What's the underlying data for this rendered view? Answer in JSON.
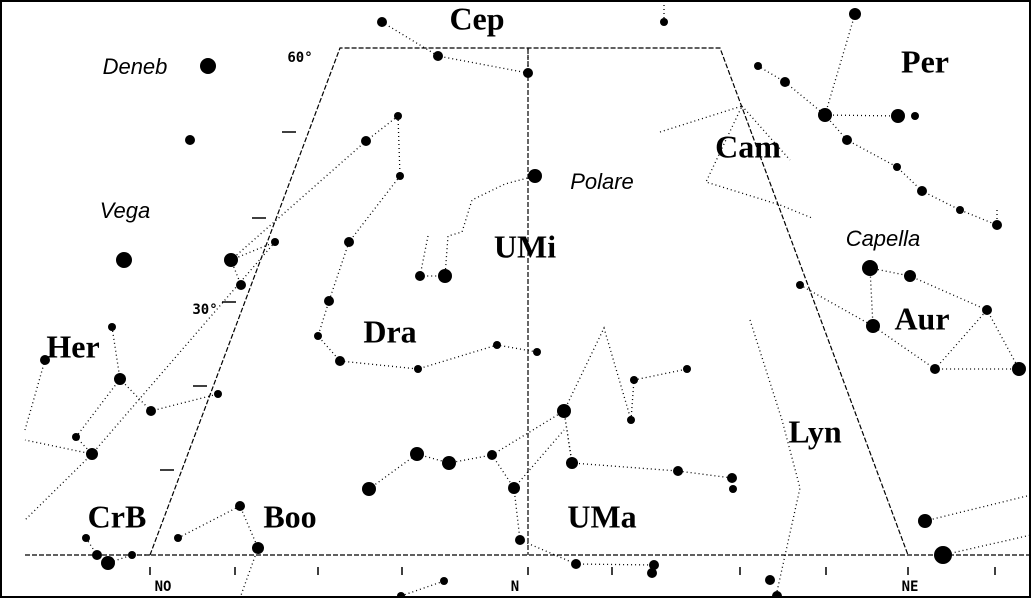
{
  "constellations": [
    "Cep",
    "Per",
    "Cam",
    "UMi",
    "Dra",
    "Aur",
    "Her",
    "Lyn",
    "CrB",
    "Boo",
    "UMa"
  ],
  "stars": [
    "Deneb",
    "Vega",
    "Polare",
    "Capella"
  ],
  "altitudes": [
    "60°",
    "30°"
  ],
  "directions": [
    "NO",
    "N",
    "NE"
  ]
}
